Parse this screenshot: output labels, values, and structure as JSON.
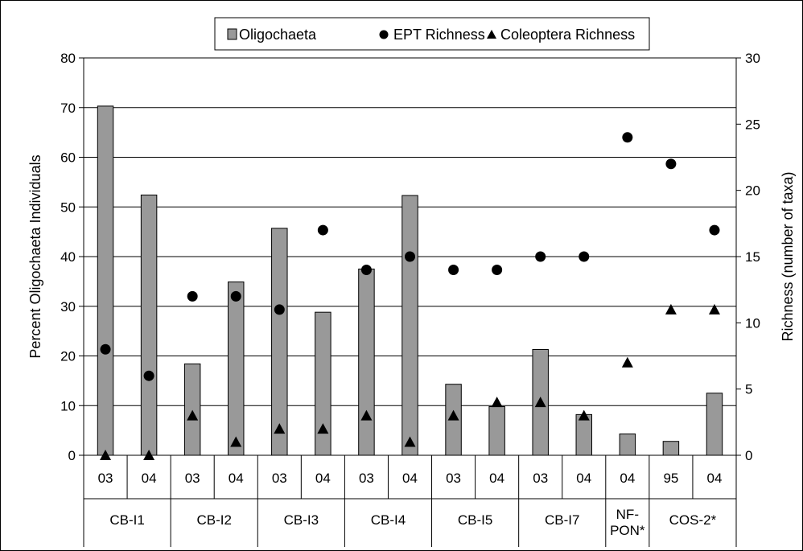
{
  "chart_data": {
    "type": "bar",
    "categories": [
      {
        "site": "CB-I1",
        "year": "03"
      },
      {
        "site": "CB-I1",
        "year": "04"
      },
      {
        "site": "CB-I2",
        "year": "03"
      },
      {
        "site": "CB-I2",
        "year": "04"
      },
      {
        "site": "CB-I3",
        "year": "03"
      },
      {
        "site": "CB-I3",
        "year": "04"
      },
      {
        "site": "CB-I4",
        "year": "03"
      },
      {
        "site": "CB-I4",
        "year": "04"
      },
      {
        "site": "CB-I5",
        "year": "03"
      },
      {
        "site": "CB-I5",
        "year": "04"
      },
      {
        "site": "CB-I7",
        "year": "03"
      },
      {
        "site": "CB-I7",
        "year": "04"
      },
      {
        "site": "NF-PON*",
        "year": "04"
      },
      {
        "site": "COS-2*",
        "year": "95"
      },
      {
        "site": "COS-2*",
        "year": "04"
      }
    ],
    "sites": [
      {
        "label_lines": [
          "CB-I1"
        ],
        "span": 2
      },
      {
        "label_lines": [
          "CB-I2"
        ],
        "span": 2
      },
      {
        "label_lines": [
          "CB-I3"
        ],
        "span": 2
      },
      {
        "label_lines": [
          "CB-I4"
        ],
        "span": 2
      },
      {
        "label_lines": [
          "CB-I5"
        ],
        "span": 2
      },
      {
        "label_lines": [
          "CB-I7"
        ],
        "span": 2
      },
      {
        "label_lines": [
          "NF-",
          "PON*"
        ],
        "span": 1
      },
      {
        "label_lines": [
          "COS-2*"
        ],
        "span": 2
      }
    ],
    "series": [
      {
        "name": "Oligochaeta",
        "mark": "bar",
        "axis": "left",
        "color": "#999999",
        "values": [
          70.3,
          52.4,
          18.4,
          34.9,
          45.7,
          28.8,
          37.5,
          52.3,
          14.3,
          9.8,
          21.3,
          8.2,
          4.3,
          2.8,
          12.5
        ]
      },
      {
        "name": "EPT Richness",
        "mark": "circle",
        "axis": "right",
        "color": "#000000",
        "values": [
          8,
          6,
          12,
          12,
          11,
          17,
          14,
          15,
          14,
          14,
          15,
          15,
          24,
          22,
          17
        ]
      },
      {
        "name": "Coleoptera Richness",
        "mark": "triangle",
        "axis": "right",
        "color": "#000000",
        "values": [
          0,
          0,
          3,
          1,
          2,
          2,
          3,
          1,
          3,
          4,
          4,
          3,
          7,
          11,
          11
        ]
      }
    ],
    "ylabel": "Percent Oligochaeta Individuals",
    "y2label": "Richness (number of taxa)",
    "ylim": [
      0,
      80
    ],
    "y2lim": [
      0,
      30
    ],
    "yticks": [
      0,
      10,
      20,
      30,
      40,
      50,
      60,
      70,
      80
    ],
    "y2ticks": [
      0,
      5,
      10,
      15,
      20,
      25,
      30
    ],
    "grid": true,
    "legend_position": "top-center"
  }
}
